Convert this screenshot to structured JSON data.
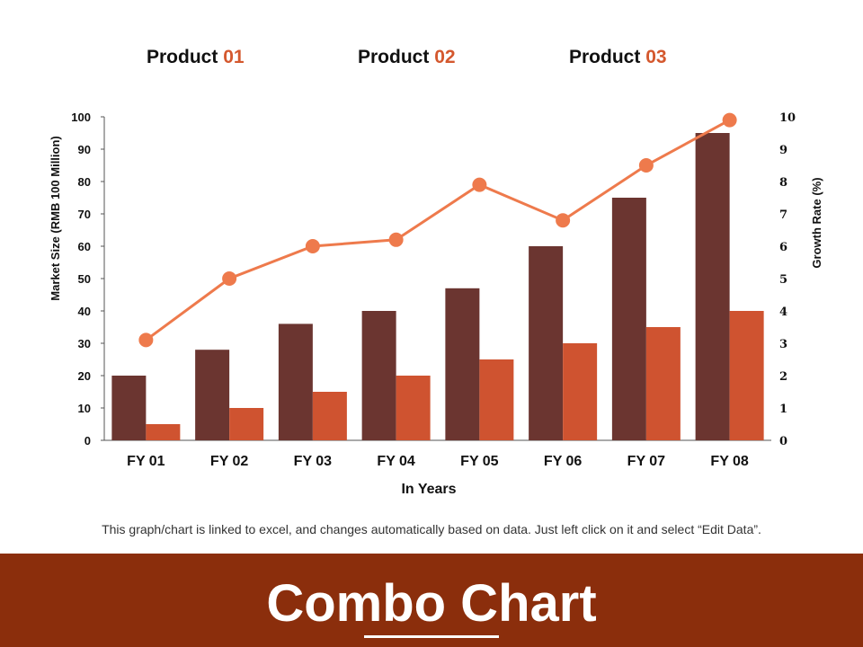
{
  "legend": [
    {
      "text": "Product",
      "num": "01"
    },
    {
      "text": "Product",
      "num": "02"
    },
    {
      "text": "Product",
      "num": "03"
    }
  ],
  "note": "This graph/chart is linked to excel, and changes automatically based on data. Just left click on it and select “Edit Data”.",
  "footer": {
    "title": "Combo Chart"
  },
  "colors": {
    "bar_dark": "#6b3530",
    "bar_orange": "#cf5330",
    "line": "#ee7a4c",
    "footer_bg": "#8b2e0c",
    "accent": "#d4582e"
  },
  "chart_data": {
    "type": "bar",
    "categories": [
      "FY 01",
      "FY 02",
      "FY 03",
      "FY 04",
      "FY 05",
      "FY 06",
      "FY 07",
      "FY 08"
    ],
    "series": [
      {
        "kind": "bar",
        "axis": "left",
        "color": "#6b3530",
        "values": [
          20,
          28,
          36,
          40,
          47,
          60,
          75,
          95
        ]
      },
      {
        "kind": "bar",
        "axis": "left",
        "color": "#cf5330",
        "values": [
          5,
          10,
          15,
          20,
          25,
          30,
          35,
          40
        ]
      },
      {
        "kind": "line",
        "axis": "right",
        "color": "#ee7a4c",
        "values": [
          3.1,
          5.0,
          6.0,
          6.2,
          7.9,
          6.8,
          8.5,
          9.9
        ]
      }
    ],
    "xlabel": "In Years",
    "ylabel": "Market Size (RMB 100 Million)",
    "y2label": "Growth Rate (%)",
    "ylim": [
      0,
      100
    ],
    "y2lim": [
      0,
      10
    ],
    "yticks": [
      "0",
      "10",
      "20",
      "30",
      "40",
      "50",
      "60",
      "70",
      "80",
      "90",
      "100"
    ],
    "y2ticks": [
      "0",
      "1",
      "2",
      "3",
      "4",
      "5",
      "6",
      "7",
      "8",
      "9",
      "10"
    ],
    "grid": false,
    "legend_position": "top"
  }
}
